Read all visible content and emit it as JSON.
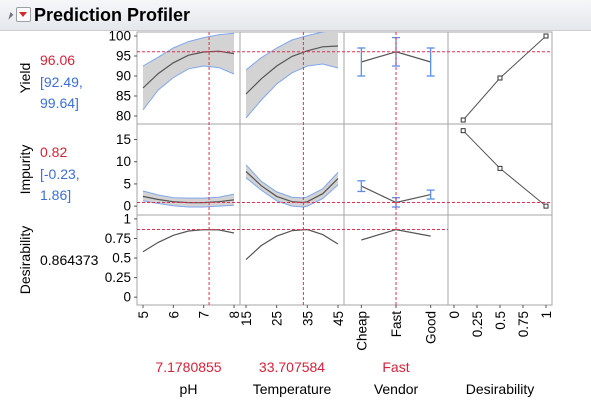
{
  "window": {
    "title": "Prediction Profiler"
  },
  "responses": [
    {
      "name": "Yield",
      "value": "96.06",
      "ci_lines": [
        "[92.49,",
        "99.64]"
      ]
    },
    {
      "name": "Impurity",
      "value": "0.82",
      "ci_lines": [
        "[-0.23,",
        "1.86]"
      ]
    },
    {
      "name": "Desirability",
      "value": "0.864373"
    }
  ],
  "factors": [
    {
      "name": "pH",
      "current": "7.1780855"
    },
    {
      "name": "Temperature",
      "current": "33.707584"
    },
    {
      "name": "Vendor",
      "current": "Fast"
    },
    {
      "name": "Desirability",
      "current": ""
    }
  ],
  "colors": {
    "value": "#d6223a",
    "interval": "#3c6fd8",
    "band": "#d3d3d3",
    "ref_line": "#e03050",
    "curve": "#555555",
    "error_bar": "#5b8ee8"
  },
  "chart_data": {
    "type": "line",
    "title": "Prediction Profiler",
    "rows": [
      {
        "name": "Yield",
        "ylim": [
          78,
          101
        ],
        "yticks": [
          80,
          85,
          90,
          95,
          100
        ],
        "current": 96.06,
        "ci": [
          92.49,
          99.64
        ]
      },
      {
        "name": "Impurity",
        "ylim": [
          -2,
          18.5
        ],
        "yticks": [
          0,
          5,
          10,
          15
        ],
        "current": 0.82,
        "ci": [
          -0.23,
          1.86
        ]
      },
      {
        "name": "Desirability",
        "ylim": [
          -0.1,
          1.05
        ],
        "yticks": [
          0,
          0.25,
          0.5,
          0.75,
          1
        ],
        "current": 0.864373
      }
    ],
    "columns": [
      {
        "name": "pH",
        "kind": "continuous",
        "xlim": [
          5,
          8
        ],
        "xticks": [
          5,
          6,
          7,
          8
        ],
        "current": 7.1780855
      },
      {
        "name": "Temperature",
        "kind": "continuous",
        "xlim": [
          15,
          45
        ],
        "xticks": [
          15,
          25,
          35,
          45
        ],
        "current": 33.707584
      },
      {
        "name": "Vendor",
        "kind": "categorical",
        "categories": [
          "Cheap",
          "Fast",
          "Good"
        ],
        "current": "Fast"
      },
      {
        "name": "Desirability",
        "kind": "desirability",
        "xlim": [
          0,
          1
        ],
        "xticks": [
          "0",
          "0.25",
          "0.5",
          "0.75",
          "1"
        ]
      }
    ],
    "series": [
      {
        "name": "Yield by pH",
        "x": [
          5,
          5.5,
          6,
          6.5,
          7,
          7.5,
          8
        ],
        "y": [
          87.0,
          90.6,
          93.3,
          95.2,
          96.0,
          96.2,
          95.6
        ],
        "lower": [
          81.5,
          86.5,
          89.6,
          91.8,
          92.5,
          92.1,
          90.5
        ],
        "upper": [
          92.5,
          94.7,
          97.0,
          98.6,
          99.6,
          100.3,
          100.7
        ]
      },
      {
        "name": "Yield by Temperature",
        "x": [
          15,
          20,
          25,
          30,
          35,
          40,
          45
        ],
        "y": [
          85.5,
          89.3,
          92.5,
          94.9,
          96.3,
          97.3,
          97.5
        ],
        "lower": [
          79.5,
          84.0,
          88.0,
          90.8,
          92.5,
          93.0,
          92.0
        ],
        "upper": [
          91.5,
          94.6,
          97.0,
          99.0,
          100.1,
          101.0,
          101.5
        ]
      },
      {
        "name": "Yield by Vendor",
        "categories": [
          "Cheap",
          "Fast",
          "Good"
        ],
        "y": [
          93.5,
          96.06,
          93.5
        ],
        "lower": [
          90.0,
          92.5,
          90.0
        ],
        "upper": [
          97.0,
          99.6,
          97.0
        ]
      },
      {
        "name": "Yield Desirability",
        "x": [
          0.1,
          0.5,
          1.0
        ],
        "y": [
          79,
          89.5,
          100
        ]
      },
      {
        "name": "Impurity by pH",
        "x": [
          5,
          5.5,
          6,
          6.5,
          7,
          7.5,
          8
        ],
        "y": [
          2.2,
          1.5,
          1.0,
          0.8,
          0.8,
          1.0,
          1.4
        ],
        "lower": [
          1.2,
          0.6,
          0.1,
          -0.2,
          -0.2,
          0.0,
          0.2
        ],
        "upper": [
          3.4,
          2.5,
          1.9,
          1.8,
          1.8,
          2.0,
          2.7
        ]
      },
      {
        "name": "Impurity by Temperature",
        "x": [
          15,
          20,
          25,
          30,
          33.7,
          35,
          40,
          45
        ],
        "y": [
          7.8,
          4.6,
          2.2,
          1.0,
          0.82,
          1.0,
          2.8,
          6.2
        ],
        "lower": [
          6.4,
          3.6,
          1.2,
          0.0,
          -0.2,
          0.0,
          1.7,
          4.8
        ],
        "upper": [
          9.3,
          5.6,
          3.2,
          2.0,
          1.86,
          2.1,
          3.9,
          7.6
        ]
      },
      {
        "name": "Impurity by Vendor",
        "categories": [
          "Cheap",
          "Fast",
          "Good"
        ],
        "y": [
          4.5,
          0.82,
          2.6
        ],
        "lower": [
          3.3,
          -0.2,
          1.6
        ],
        "upper": [
          5.7,
          1.9,
          3.6
        ]
      },
      {
        "name": "Impurity Desirability",
        "x": [
          0.1,
          0.5,
          1.0
        ],
        "y": [
          17,
          8.5,
          0
        ]
      },
      {
        "name": "Desirability by pH",
        "x": [
          5,
          5.5,
          6,
          6.5,
          7,
          7.5,
          8
        ],
        "y": [
          0.58,
          0.7,
          0.79,
          0.845,
          0.862,
          0.86,
          0.82
        ]
      },
      {
        "name": "Desirability by Temperature",
        "x": [
          15,
          20,
          25,
          30,
          35,
          40,
          45
        ],
        "y": [
          0.48,
          0.66,
          0.78,
          0.85,
          0.865,
          0.8,
          0.68
        ]
      },
      {
        "name": "Desirability by Vendor",
        "categories": [
          "Cheap",
          "Fast",
          "Good"
        ],
        "y": [
          0.73,
          0.864,
          0.78
        ]
      }
    ]
  }
}
